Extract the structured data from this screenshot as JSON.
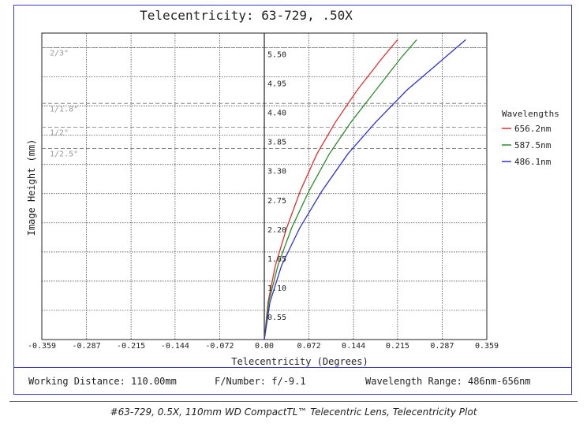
{
  "chart_data": {
    "type": "line",
    "title": "Telecentricity: 63-729, .50X",
    "xlabel": "Telecentricity (Degrees)",
    "ylabel": "Image Height (mm)",
    "xlim": [
      -0.359,
      0.359
    ],
    "ylim": [
      0,
      5.775
    ],
    "x_ticks": [
      "-0.359",
      "-0.287",
      "-0.215",
      "-0.144",
      "-0.072",
      "0.00",
      "0.072",
      "0.144",
      "0.215",
      "0.287",
      "0.359"
    ],
    "y_ticks": [
      "0.55",
      "1.10",
      "1.65",
      "2.20",
      "2.75",
      "3.30",
      "3.85",
      "4.40",
      "4.95",
      "5.50"
    ],
    "grid": true,
    "sensor_markers": [
      {
        "label": "2/3\"",
        "y": 5.5
      },
      {
        "label": "1/1.8\"",
        "y": 4.45
      },
      {
        "label": "1/2\"",
        "y": 4.0
      },
      {
        "label": "1/2.5\"",
        "y": 3.6
      }
    ],
    "legend": {
      "title": "Wavelengths",
      "placement": "right"
    },
    "series": [
      {
        "name": "656.2nm",
        "color": "#e03030",
        "x": [
          0,
          0.006,
          0.018,
          0.036,
          0.058,
          0.085,
          0.115,
          0.15,
          0.19,
          0.215
        ],
        "y": [
          0,
          0.7,
          1.4,
          2.1,
          2.8,
          3.5,
          4.1,
          4.7,
          5.3,
          5.65
        ]
      },
      {
        "name": "587.5nm",
        "color": "#2c8c2c",
        "x": [
          0,
          0.007,
          0.022,
          0.044,
          0.072,
          0.105,
          0.14,
          0.18,
          0.22,
          0.246
        ],
        "y": [
          0,
          0.7,
          1.4,
          2.1,
          2.8,
          3.5,
          4.1,
          4.7,
          5.3,
          5.65
        ]
      },
      {
        "name": "486.1nm",
        "color": "#3030d0",
        "x": [
          0,
          0.009,
          0.028,
          0.057,
          0.093,
          0.135,
          0.18,
          0.23,
          0.29,
          0.325
        ],
        "y": [
          0,
          0.7,
          1.4,
          2.1,
          2.8,
          3.5,
          4.1,
          4.7,
          5.3,
          5.65
        ]
      }
    ]
  },
  "info": {
    "working_distance": "Working Distance: 110.00mm",
    "f_number": "F/Number: f/-9.1",
    "wavelength_range": "Wavelength Range: 486nm-656nm"
  },
  "caption": "#63-729, 0.5X, 110mm WD CompactTL™ Telecentric Lens, Telecentricity Plot"
}
